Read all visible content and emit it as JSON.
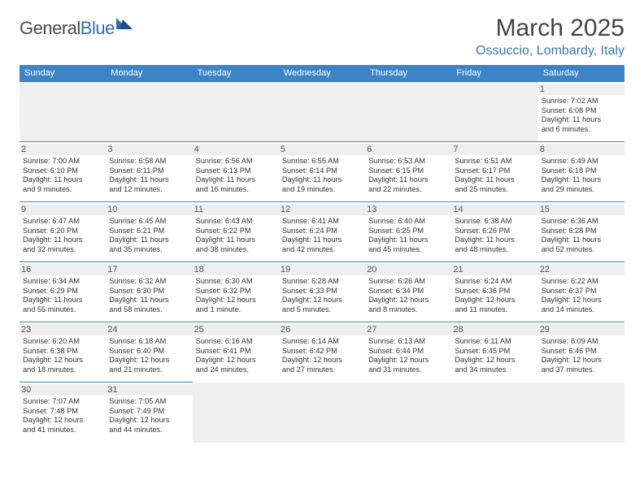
{
  "logo": {
    "part1": "General",
    "part2": "Blue"
  },
  "title": "March 2025",
  "location": "Ossuccio, Lombardy, Italy",
  "colors": {
    "headerBar": "#3d84c6",
    "accent": "#3a78b5",
    "dayStripe": "#eeeeee",
    "blank": "#f0f0f0"
  },
  "daysOfWeek": [
    "Sunday",
    "Monday",
    "Tuesday",
    "Wednesday",
    "Thursday",
    "Friday",
    "Saturday"
  ],
  "weeks": [
    [
      null,
      null,
      null,
      null,
      null,
      null,
      {
        "n": "1",
        "sr": "Sunrise: 7:02 AM",
        "ss": "Sunset: 6:08 PM",
        "dl1": "Daylight: 11 hours",
        "dl2": "and 6 minutes."
      }
    ],
    [
      {
        "n": "2",
        "sr": "Sunrise: 7:00 AM",
        "ss": "Sunset: 6:10 PM",
        "dl1": "Daylight: 11 hours",
        "dl2": "and 9 minutes."
      },
      {
        "n": "3",
        "sr": "Sunrise: 6:58 AM",
        "ss": "Sunset: 6:11 PM",
        "dl1": "Daylight: 11 hours",
        "dl2": "and 12 minutes."
      },
      {
        "n": "4",
        "sr": "Sunrise: 6:56 AM",
        "ss": "Sunset: 6:13 PM",
        "dl1": "Daylight: 11 hours",
        "dl2": "and 16 minutes."
      },
      {
        "n": "5",
        "sr": "Sunrise: 6:55 AM",
        "ss": "Sunset: 6:14 PM",
        "dl1": "Daylight: 11 hours",
        "dl2": "and 19 minutes."
      },
      {
        "n": "6",
        "sr": "Sunrise: 6:53 AM",
        "ss": "Sunset: 6:15 PM",
        "dl1": "Daylight: 11 hours",
        "dl2": "and 22 minutes."
      },
      {
        "n": "7",
        "sr": "Sunrise: 6:51 AM",
        "ss": "Sunset: 6:17 PM",
        "dl1": "Daylight: 11 hours",
        "dl2": "and 25 minutes."
      },
      {
        "n": "8",
        "sr": "Sunrise: 6:49 AM",
        "ss": "Sunset: 6:18 PM",
        "dl1": "Daylight: 11 hours",
        "dl2": "and 29 minutes."
      }
    ],
    [
      {
        "n": "9",
        "sr": "Sunrise: 6:47 AM",
        "ss": "Sunset: 6:20 PM",
        "dl1": "Daylight: 11 hours",
        "dl2": "and 32 minutes."
      },
      {
        "n": "10",
        "sr": "Sunrise: 6:45 AM",
        "ss": "Sunset: 6:21 PM",
        "dl1": "Daylight: 11 hours",
        "dl2": "and 35 minutes."
      },
      {
        "n": "11",
        "sr": "Sunrise: 6:43 AM",
        "ss": "Sunset: 6:22 PM",
        "dl1": "Daylight: 11 hours",
        "dl2": "and 38 minutes."
      },
      {
        "n": "12",
        "sr": "Sunrise: 6:41 AM",
        "ss": "Sunset: 6:24 PM",
        "dl1": "Daylight: 11 hours",
        "dl2": "and 42 minutes."
      },
      {
        "n": "13",
        "sr": "Sunrise: 6:40 AM",
        "ss": "Sunset: 6:25 PM",
        "dl1": "Daylight: 11 hours",
        "dl2": "and 45 minutes."
      },
      {
        "n": "14",
        "sr": "Sunrise: 6:38 AM",
        "ss": "Sunset: 6:26 PM",
        "dl1": "Daylight: 11 hours",
        "dl2": "and 48 minutes."
      },
      {
        "n": "15",
        "sr": "Sunrise: 6:36 AM",
        "ss": "Sunset: 6:28 PM",
        "dl1": "Daylight: 11 hours",
        "dl2": "and 52 minutes."
      }
    ],
    [
      {
        "n": "16",
        "sr": "Sunrise: 6:34 AM",
        "ss": "Sunset: 6:29 PM",
        "dl1": "Daylight: 11 hours",
        "dl2": "and 55 minutes."
      },
      {
        "n": "17",
        "sr": "Sunrise: 6:32 AM",
        "ss": "Sunset: 6:30 PM",
        "dl1": "Daylight: 11 hours",
        "dl2": "and 58 minutes."
      },
      {
        "n": "18",
        "sr": "Sunrise: 6:30 AM",
        "ss": "Sunset: 6:32 PM",
        "dl1": "Daylight: 12 hours",
        "dl2": "and 1 minute."
      },
      {
        "n": "19",
        "sr": "Sunrise: 6:28 AM",
        "ss": "Sunset: 6:33 PM",
        "dl1": "Daylight: 12 hours",
        "dl2": "and 5 minutes."
      },
      {
        "n": "20",
        "sr": "Sunrise: 6:26 AM",
        "ss": "Sunset: 6:34 PM",
        "dl1": "Daylight: 12 hours",
        "dl2": "and 8 minutes."
      },
      {
        "n": "21",
        "sr": "Sunrise: 6:24 AM",
        "ss": "Sunset: 6:36 PM",
        "dl1": "Daylight: 12 hours",
        "dl2": "and 11 minutes."
      },
      {
        "n": "22",
        "sr": "Sunrise: 6:22 AM",
        "ss": "Sunset: 6:37 PM",
        "dl1": "Daylight: 12 hours",
        "dl2": "and 14 minutes."
      }
    ],
    [
      {
        "n": "23",
        "sr": "Sunrise: 6:20 AM",
        "ss": "Sunset: 6:38 PM",
        "dl1": "Daylight: 12 hours",
        "dl2": "and 18 minutes."
      },
      {
        "n": "24",
        "sr": "Sunrise: 6:18 AM",
        "ss": "Sunset: 6:40 PM",
        "dl1": "Daylight: 12 hours",
        "dl2": "and 21 minutes."
      },
      {
        "n": "25",
        "sr": "Sunrise: 6:16 AM",
        "ss": "Sunset: 6:41 PM",
        "dl1": "Daylight: 12 hours",
        "dl2": "and 24 minutes."
      },
      {
        "n": "26",
        "sr": "Sunrise: 6:14 AM",
        "ss": "Sunset: 6:42 PM",
        "dl1": "Daylight: 12 hours",
        "dl2": "and 27 minutes."
      },
      {
        "n": "27",
        "sr": "Sunrise: 6:13 AM",
        "ss": "Sunset: 6:44 PM",
        "dl1": "Daylight: 12 hours",
        "dl2": "and 31 minutes."
      },
      {
        "n": "28",
        "sr": "Sunrise: 6:11 AM",
        "ss": "Sunset: 6:45 PM",
        "dl1": "Daylight: 12 hours",
        "dl2": "and 34 minutes."
      },
      {
        "n": "29",
        "sr": "Sunrise: 6:09 AM",
        "ss": "Sunset: 6:46 PM",
        "dl1": "Daylight: 12 hours",
        "dl2": "and 37 minutes."
      }
    ],
    [
      {
        "n": "30",
        "sr": "Sunrise: 7:07 AM",
        "ss": "Sunset: 7:48 PM",
        "dl1": "Daylight: 12 hours",
        "dl2": "and 41 minutes."
      },
      {
        "n": "31",
        "sr": "Sunrise: 7:05 AM",
        "ss": "Sunset: 7:49 PM",
        "dl1": "Daylight: 12 hours",
        "dl2": "and 44 minutes."
      },
      null,
      null,
      null,
      null,
      null
    ]
  ]
}
